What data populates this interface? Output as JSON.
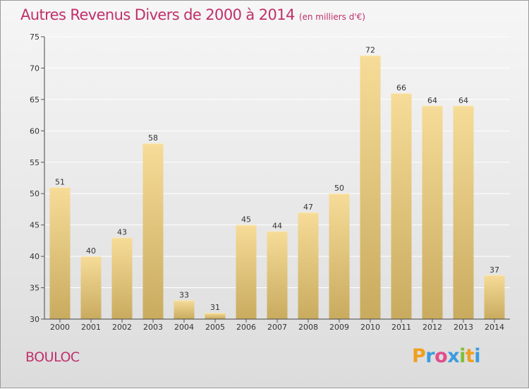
{
  "title": "Autres Revenus Divers de 2000 à 2014",
  "title_unit": "(en milliers d'€)",
  "place": "BOULOC",
  "logo": {
    "letters": [
      "P",
      "r",
      "o",
      "x",
      "i",
      "t",
      "i"
    ],
    "colors": [
      "#f0a020",
      "#3b9be0",
      "#e04e8a",
      "#3b9be0",
      "#7dbf3a",
      "#f0a020",
      "#3b9be0"
    ]
  },
  "colors": {
    "title": "#c0306a",
    "bar_light": "#f6dc98",
    "bar_dark": "#c9ab5f"
  },
  "chart_data": {
    "type": "bar",
    "title": "Autres Revenus Divers de 2000 à 2014",
    "xlabel": "",
    "ylabel": "",
    "ylim": [
      30,
      75
    ],
    "yticks": [
      30,
      35,
      40,
      45,
      50,
      55,
      60,
      65,
      70,
      75
    ],
    "grid": true,
    "categories": [
      "2000",
      "2001",
      "2002",
      "2003",
      "2004",
      "2005",
      "2006",
      "2007",
      "2008",
      "2009",
      "2010",
      "2011",
      "2012",
      "2013",
      "2014"
    ],
    "values": [
      51,
      40,
      43,
      58,
      33,
      31,
      45,
      44,
      47,
      50,
      72,
      66,
      64,
      64,
      37
    ]
  }
}
